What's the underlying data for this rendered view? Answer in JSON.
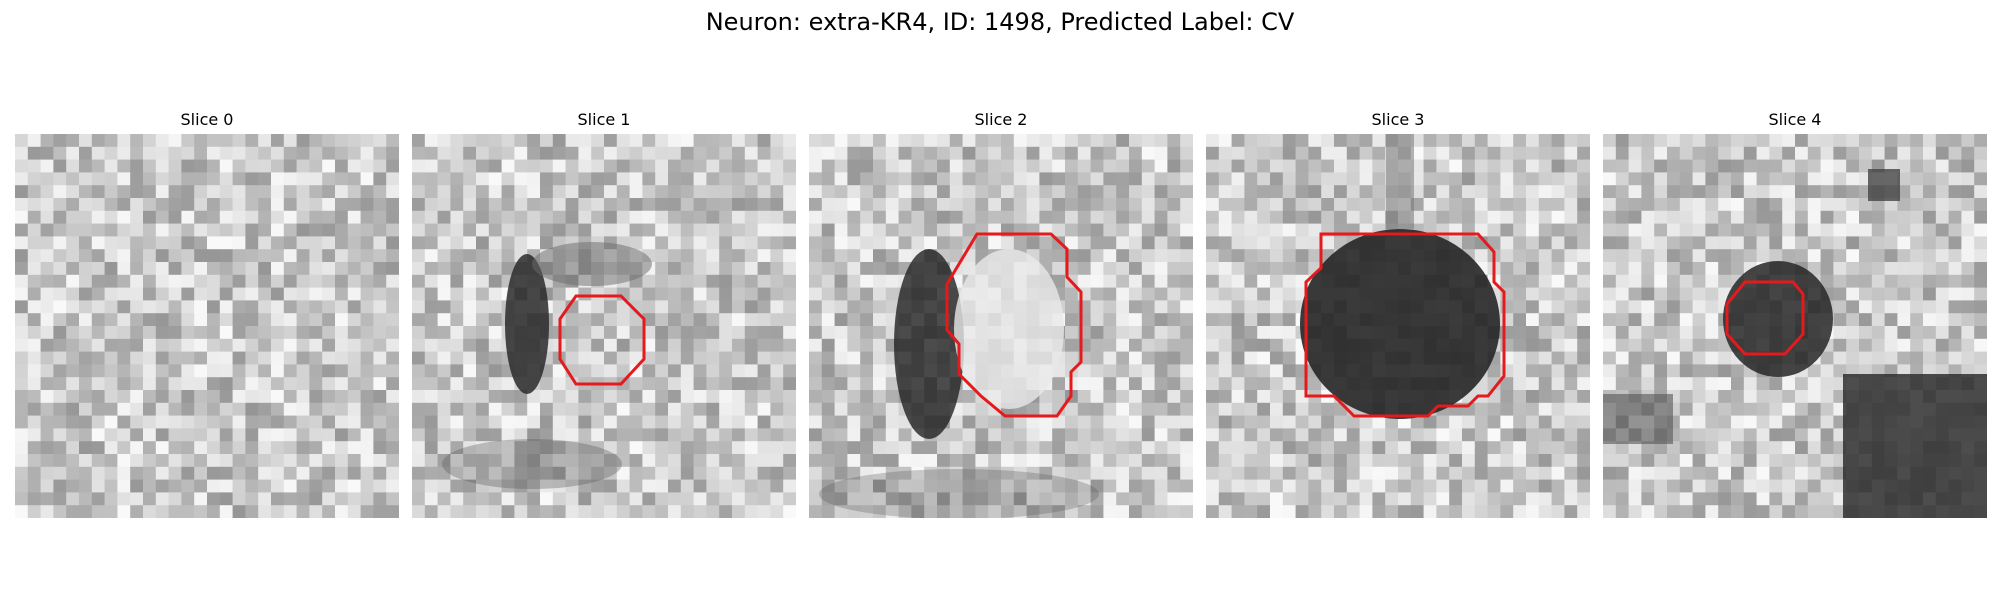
{
  "figure": {
    "title": "Neuron: extra-KR4, ID: 1498, Predicted Label: CV",
    "panels": [
      {
        "title": "Slice 0"
      },
      {
        "title": "Slice 1"
      },
      {
        "title": "Slice 2"
      },
      {
        "title": "Slice 3"
      },
      {
        "title": "Slice 4"
      }
    ],
    "contour_color": "#e41a1c"
  }
}
